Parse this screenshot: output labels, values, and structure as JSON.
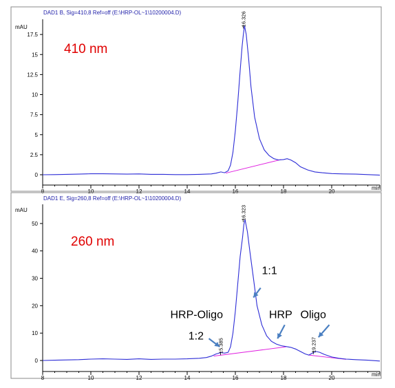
{
  "chart_data": [
    {
      "type": "line",
      "header": "DAD1 B, Sig=410,8 Ref=off (E:\\HRP-OL~1\\10200004.D)",
      "ylabel": "mAU",
      "xlabel": "min",
      "xlim": [
        8,
        22
      ],
      "ylim": [
        -0.6,
        19.4
      ],
      "xticks": [
        8,
        10,
        12,
        14,
        16,
        18,
        20
      ],
      "yticks": [
        0,
        2.5,
        5,
        7.5,
        10,
        12.5,
        15,
        17.5
      ],
      "ytick_labels": [
        "0",
        "2.5",
        "5",
        "7.5",
        "10",
        "12.5",
        "15",
        "17.5"
      ],
      "wavelength_label": "410 nm",
      "series_color": "#2b2bd6",
      "baseline_color": "#e020e0",
      "trace": [
        [
          8,
          0
        ],
        [
          8.5,
          0.02
        ],
        [
          9,
          0.05
        ],
        [
          9.5,
          0.08
        ],
        [
          10,
          0.12
        ],
        [
          10.5,
          0.12
        ],
        [
          11,
          0.1
        ],
        [
          11.5,
          0.08
        ],
        [
          12,
          0.1
        ],
        [
          12.5,
          0.05
        ],
        [
          13,
          0.05
        ],
        [
          13.5,
          0.02
        ],
        [
          14,
          0.02
        ],
        [
          14.5,
          0.05
        ],
        [
          15,
          0.1
        ],
        [
          15.2,
          0.2
        ],
        [
          15.4,
          0.35
        ],
        [
          15.55,
          0.25
        ],
        [
          15.7,
          0.5
        ],
        [
          15.8,
          1.2
        ],
        [
          15.9,
          2.8
        ],
        [
          16.0,
          5.5
        ],
        [
          16.1,
          9.0
        ],
        [
          16.2,
          13.0
        ],
        [
          16.28,
          16.0
        ],
        [
          16.33,
          17.4
        ],
        [
          16.38,
          18.6
        ],
        [
          16.45,
          17.5
        ],
        [
          16.55,
          14.5
        ],
        [
          16.65,
          11.0
        ],
        [
          16.8,
          7.2
        ],
        [
          17.0,
          4.5
        ],
        [
          17.2,
          3.1
        ],
        [
          17.4,
          2.4
        ],
        [
          17.6,
          2.0
        ],
        [
          17.8,
          1.85
        ],
        [
          18.0,
          1.9
        ],
        [
          18.15,
          2.0
        ],
        [
          18.3,
          1.85
        ],
        [
          18.5,
          1.5
        ],
        [
          18.7,
          1.0
        ],
        [
          19.0,
          0.6
        ],
        [
          19.3,
          0.35
        ],
        [
          19.6,
          0.25
        ],
        [
          20.0,
          0.15
        ],
        [
          20.5,
          0.1
        ],
        [
          21.0,
          0.08
        ],
        [
          21.5,
          0.02
        ],
        [
          22.0,
          -0.05
        ]
      ],
      "baseline": [
        [
          15.6,
          0.2
        ],
        [
          17.9,
          1.9
        ]
      ],
      "peak_labels": [
        {
          "x": 16.33,
          "y": 18.6,
          "text": "16.326"
        }
      ],
      "annotations": []
    },
    {
      "type": "line",
      "header": "DAD1 E, Sig=260,8 Ref=off (E:\\HRP-OL~1\\10200004.D)",
      "ylabel": "mAU",
      "xlabel": "min",
      "xlim": [
        8,
        22
      ],
      "ylim": [
        -2,
        57
      ],
      "xticks": [
        8,
        10,
        12,
        14,
        16,
        18,
        20
      ],
      "yticks": [
        0,
        10,
        20,
        30,
        40,
        50
      ],
      "ytick_labels": [
        "0",
        "10",
        "20",
        "30",
        "40",
        "50"
      ],
      "wavelength_label": "260 nm",
      "series_color": "#2b2bd6",
      "baseline_color": "#e020e0",
      "trace": [
        [
          8,
          0
        ],
        [
          8.5,
          0.1
        ],
        [
          9,
          0.2
        ],
        [
          9.5,
          0.3
        ],
        [
          10,
          0.5
        ],
        [
          10.5,
          0.6
        ],
        [
          11,
          0.5
        ],
        [
          11.5,
          0.4
        ],
        [
          12,
          0.6
        ],
        [
          12.5,
          0.4
        ],
        [
          13,
          0.5
        ],
        [
          13.5,
          0.5
        ],
        [
          14,
          0.6
        ],
        [
          14.5,
          0.8
        ],
        [
          14.8,
          1.1
        ],
        [
          15.0,
          1.6
        ],
        [
          15.2,
          2.4
        ],
        [
          15.4,
          2.9
        ],
        [
          15.55,
          2.7
        ],
        [
          15.7,
          3.0
        ],
        [
          15.8,
          5.0
        ],
        [
          15.9,
          10.0
        ],
        [
          16.0,
          18.0
        ],
        [
          16.1,
          28.0
        ],
        [
          16.2,
          38.0
        ],
        [
          16.3,
          45.0
        ],
        [
          16.35,
          49.5
        ],
        [
          16.4,
          51.5
        ],
        [
          16.5,
          47.0
        ],
        [
          16.6,
          40.0
        ],
        [
          16.75,
          30.0
        ],
        [
          16.9,
          20.0
        ],
        [
          17.1,
          13.0
        ],
        [
          17.3,
          9.0
        ],
        [
          17.5,
          7.0
        ],
        [
          17.7,
          6.0
        ],
        [
          17.9,
          5.4
        ],
        [
          18.1,
          5.1
        ],
        [
          18.3,
          4.8
        ],
        [
          18.5,
          4.2
        ],
        [
          18.7,
          3.3
        ],
        [
          18.9,
          2.4
        ],
        [
          19.05,
          2.0
        ],
        [
          19.2,
          2.7
        ],
        [
          19.35,
          3.3
        ],
        [
          19.5,
          3.0
        ],
        [
          19.7,
          2.2
        ],
        [
          20.0,
          1.3
        ],
        [
          20.3,
          0.8
        ],
        [
          20.6,
          0.5
        ],
        [
          21.0,
          0.3
        ],
        [
          21.5,
          0.1
        ],
        [
          22.0,
          -0.2
        ]
      ],
      "baseline": [
        [
          15.1,
          1.6
        ],
        [
          18.1,
          5.0
        ],
        [
          19.05,
          2.0
        ],
        [
          20.6,
          0.4
        ]
      ],
      "peak_labels": [
        {
          "x": 15.385,
          "y": 3.0,
          "text": "15.385"
        },
        {
          "x": 16.323,
          "y": 51.5,
          "text": "16.323"
        },
        {
          "x": 19.237,
          "y": 3.3,
          "text": "19.237"
        }
      ],
      "annotations": [
        {
          "text": "1:1",
          "tx": 17.1,
          "ty": 31.5,
          "ax1": 17.05,
          "ay1": 26.5,
          "ax2": 16.75,
          "ay2": 23.0
        },
        {
          "text": "HRP-Oligo",
          "tx": 13.3,
          "ty": 15.5,
          "ax1": null,
          "ay1": null,
          "ax2": null,
          "ay2": null
        },
        {
          "text": "1:2",
          "tx": 14.05,
          "ty": 7.7,
          "ax1": 14.9,
          "ay1": 8.0,
          "ax2": 15.35,
          "ay2": 5.0
        },
        {
          "text": "HRP",
          "tx": 17.4,
          "ty": 15.5,
          "ax1": 18.05,
          "ay1": 13.0,
          "ax2": 17.75,
          "ay2": 8.0
        },
        {
          "text": "Oligo",
          "tx": 18.7,
          "ty": 15.5,
          "ax1": 19.9,
          "ay1": 13.0,
          "ax2": 19.45,
          "ay2": 8.5
        }
      ]
    }
  ]
}
